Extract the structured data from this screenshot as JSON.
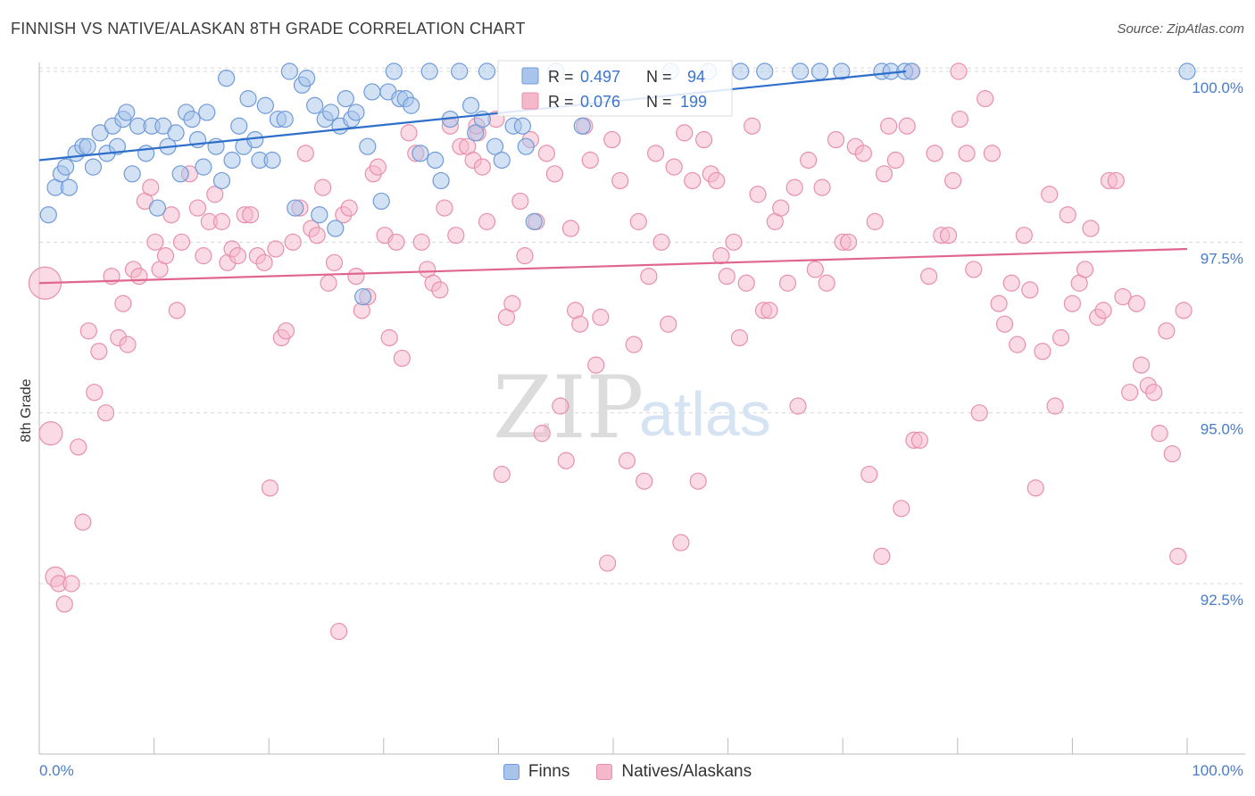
{
  "header": {
    "title": "FINNISH VS NATIVE/ALASKAN 8TH GRADE CORRELATION CHART",
    "source": "Source: ZipAtlas.com"
  },
  "watermark": {
    "part1": "ZIP",
    "part2": "atlas"
  },
  "legend_top": {
    "finns": {
      "r_label": "R =",
      "r_value": "0.497",
      "n_label": "N =",
      "n_value": "94"
    },
    "natives": {
      "r_label": "R =",
      "r_value": "0.076",
      "n_label": "N =",
      "n_value": "199"
    }
  },
  "legend_bottom": {
    "finns": "Finns",
    "natives": "Natives/Alaskans"
  },
  "colors": {
    "finns_fill": "#a8c4ea",
    "finns_stroke": "#6f9bd8",
    "finns_line": "#2f6fcc",
    "natives_fill": "#f5b8cb",
    "natives_stroke": "#e890aa",
    "natives_line": "#e06690",
    "tick_label": "#4a7cc7",
    "grid": "#d8d8d8"
  },
  "chart_data": {
    "type": "scatter",
    "title": "FINNISH VS NATIVE/ALASKAN 8TH GRADE CORRELATION CHART",
    "xlabel": "",
    "ylabel": "8th Grade",
    "xlim": [
      0,
      100
    ],
    "ylim": [
      89.5,
      100.2
    ],
    "x_tick_labels": [
      "0.0%",
      "100.0%"
    ],
    "y_ticks": [
      {
        "value": 100.0,
        "label": "100.0%"
      },
      {
        "value": 97.5,
        "label": "97.5%"
      },
      {
        "value": 95.0,
        "label": "95.0%"
      },
      {
        "value": 92.5,
        "label": "92.5%"
      }
    ],
    "grid": true,
    "legend_position": "top-center",
    "series": [
      {
        "name": "Finns",
        "r": 0.497,
        "n": 94,
        "trend": {
          "x": [
            0,
            75.5
          ],
          "y": [
            98.7,
            100.0
          ]
        },
        "points": [
          [
            0.8,
            97.9
          ],
          [
            1.4,
            98.3
          ],
          [
            1.9,
            98.5
          ],
          [
            2.3,
            98.6
          ],
          [
            2.6,
            98.3
          ],
          [
            3.2,
            98.8
          ],
          [
            3.8,
            98.9
          ],
          [
            4.2,
            98.9
          ],
          [
            4.7,
            98.6
          ],
          [
            5.3,
            99.1
          ],
          [
            5.9,
            98.8
          ],
          [
            6.4,
            99.2
          ],
          [
            6.8,
            98.9
          ],
          [
            7.3,
            99.3
          ],
          [
            7.6,
            99.4
          ],
          [
            8.1,
            98.5
          ],
          [
            8.6,
            99.2
          ],
          [
            9.3,
            98.8
          ],
          [
            9.8,
            99.2
          ],
          [
            10.3,
            98.0
          ],
          [
            10.8,
            99.2
          ],
          [
            11.2,
            98.9
          ],
          [
            11.9,
            99.1
          ],
          [
            12.3,
            98.5
          ],
          [
            12.8,
            99.4
          ],
          [
            13.3,
            99.3
          ],
          [
            13.8,
            99.0
          ],
          [
            14.3,
            98.6
          ],
          [
            14.6,
            99.4
          ],
          [
            15.4,
            98.9
          ],
          [
            15.9,
            98.4
          ],
          [
            16.3,
            99.9
          ],
          [
            16.8,
            98.7
          ],
          [
            17.4,
            99.2
          ],
          [
            17.8,
            98.9
          ],
          [
            18.2,
            99.6
          ],
          [
            18.8,
            99.0
          ],
          [
            19.2,
            98.7
          ],
          [
            19.7,
            99.5
          ],
          [
            20.3,
            98.7
          ],
          [
            20.8,
            99.3
          ],
          [
            21.4,
            99.3
          ],
          [
            21.8,
            100.0
          ],
          [
            22.3,
            98.0
          ],
          [
            22.9,
            99.8
          ],
          [
            23.3,
            99.9
          ],
          [
            24.0,
            99.5
          ],
          [
            24.4,
            97.9
          ],
          [
            24.9,
            99.3
          ],
          [
            25.4,
            99.4
          ],
          [
            25.8,
            97.7
          ],
          [
            26.2,
            99.2
          ],
          [
            26.7,
            99.6
          ],
          [
            27.2,
            99.3
          ],
          [
            27.6,
            99.4
          ],
          [
            28.2,
            96.7
          ],
          [
            28.6,
            98.9
          ],
          [
            29.0,
            99.7
          ],
          [
            29.8,
            98.1
          ],
          [
            30.4,
            99.7
          ],
          [
            30.9,
            100.0
          ],
          [
            31.4,
            99.6
          ],
          [
            31.9,
            99.6
          ],
          [
            32.4,
            99.5
          ],
          [
            33.2,
            98.8
          ],
          [
            34.0,
            100.0
          ],
          [
            34.5,
            98.7
          ],
          [
            35.0,
            98.4
          ],
          [
            35.8,
            99.3
          ],
          [
            36.6,
            100.0
          ],
          [
            37.6,
            99.5
          ],
          [
            38.0,
            99.1
          ],
          [
            38.6,
            99.3
          ],
          [
            39.0,
            100.0
          ],
          [
            39.7,
            98.9
          ],
          [
            40.3,
            98.7
          ],
          [
            41.3,
            99.2
          ],
          [
            42.1,
            99.2
          ],
          [
            42.4,
            98.9
          ],
          [
            43.1,
            97.8
          ],
          [
            45.0,
            100.0
          ],
          [
            47.3,
            99.2
          ],
          [
            55.0,
            100.0
          ],
          [
            58.3,
            100.0
          ],
          [
            61.1,
            100.0
          ],
          [
            66.3,
            100.0
          ],
          [
            68.0,
            100.0
          ],
          [
            69.9,
            100.0
          ],
          [
            73.4,
            100.0
          ],
          [
            74.2,
            100.0
          ],
          [
            75.4,
            100.0
          ],
          [
            76.0,
            100.0
          ],
          [
            100.0,
            100.0
          ],
          [
            63.2,
            100.0
          ]
        ]
      },
      {
        "name": "Natives/Alaskans",
        "r": 0.076,
        "n": 199,
        "trend": {
          "x": [
            0,
            100
          ],
          "y": [
            96.9,
            97.4
          ]
        },
        "points": [
          [
            0.5,
            96.9
          ],
          [
            1.0,
            94.7
          ],
          [
            1.4,
            92.6
          ],
          [
            1.7,
            92.5
          ],
          [
            2.2,
            92.2
          ],
          [
            2.8,
            92.5
          ],
          [
            3.4,
            94.5
          ],
          [
            3.8,
            93.4
          ],
          [
            4.3,
            96.2
          ],
          [
            4.8,
            95.3
          ],
          [
            5.2,
            95.9
          ],
          [
            5.8,
            95.0
          ],
          [
            6.3,
            97.0
          ],
          [
            6.9,
            96.1
          ],
          [
            7.3,
            96.6
          ],
          [
            7.7,
            96.0
          ],
          [
            8.2,
            97.1
          ],
          [
            8.7,
            97.0
          ],
          [
            9.2,
            98.1
          ],
          [
            9.7,
            98.3
          ],
          [
            10.1,
            97.5
          ],
          [
            10.5,
            97.1
          ],
          [
            11.0,
            97.3
          ],
          [
            11.5,
            97.9
          ],
          [
            12.0,
            96.5
          ],
          [
            12.4,
            97.5
          ],
          [
            13.1,
            98.5
          ],
          [
            13.8,
            98.0
          ],
          [
            14.3,
            97.3
          ],
          [
            14.8,
            97.8
          ],
          [
            15.3,
            98.2
          ],
          [
            15.9,
            97.8
          ],
          [
            16.4,
            97.2
          ],
          [
            16.8,
            97.4
          ],
          [
            17.3,
            97.3
          ],
          [
            17.9,
            97.9
          ],
          [
            18.4,
            97.9
          ],
          [
            19.0,
            97.3
          ],
          [
            19.6,
            97.2
          ],
          [
            20.1,
            93.9
          ],
          [
            20.6,
            97.4
          ],
          [
            21.1,
            96.1
          ],
          [
            21.5,
            96.2
          ],
          [
            22.1,
            97.5
          ],
          [
            22.7,
            98.0
          ],
          [
            23.2,
            98.8
          ],
          [
            23.7,
            97.7
          ],
          [
            24.2,
            97.6
          ],
          [
            24.7,
            98.3
          ],
          [
            25.2,
            96.9
          ],
          [
            25.7,
            97.2
          ],
          [
            26.1,
            91.8
          ],
          [
            26.5,
            97.9
          ],
          [
            27.0,
            98.0
          ],
          [
            27.6,
            97.0
          ],
          [
            28.1,
            96.5
          ],
          [
            28.6,
            96.7
          ],
          [
            29.1,
            98.5
          ],
          [
            29.5,
            98.6
          ],
          [
            30.1,
            97.6
          ],
          [
            30.5,
            96.1
          ],
          [
            31.1,
            97.5
          ],
          [
            31.6,
            95.8
          ],
          [
            32.2,
            99.1
          ],
          [
            32.8,
            98.8
          ],
          [
            33.3,
            97.5
          ],
          [
            33.8,
            97.1
          ],
          [
            34.3,
            96.9
          ],
          [
            34.9,
            96.8
          ],
          [
            35.3,
            98.0
          ],
          [
            35.8,
            99.2
          ],
          [
            36.3,
            97.6
          ],
          [
            36.7,
            98.9
          ],
          [
            37.3,
            98.9
          ],
          [
            37.8,
            98.7
          ],
          [
            38.2,
            99.1
          ],
          [
            38.6,
            98.6
          ],
          [
            39.0,
            97.8
          ],
          [
            39.8,
            99.3
          ],
          [
            40.3,
            94.1
          ],
          [
            40.7,
            96.4
          ],
          [
            41.2,
            96.6
          ],
          [
            41.9,
            98.1
          ],
          [
            42.3,
            97.3
          ],
          [
            42.8,
            99.0
          ],
          [
            43.3,
            97.8
          ],
          [
            43.8,
            94.7
          ],
          [
            44.2,
            98.8
          ],
          [
            44.9,
            98.5
          ],
          [
            45.4,
            95.1
          ],
          [
            45.9,
            94.3
          ],
          [
            46.3,
            97.7
          ],
          [
            46.7,
            96.5
          ],
          [
            47.1,
            96.3
          ],
          [
            47.5,
            99.2
          ],
          [
            48.0,
            98.7
          ],
          [
            48.5,
            95.7
          ],
          [
            48.9,
            96.4
          ],
          [
            49.5,
            92.8
          ],
          [
            49.9,
            99.0
          ],
          [
            50.6,
            98.4
          ],
          [
            51.2,
            94.3
          ],
          [
            51.8,
            96.0
          ],
          [
            52.2,
            97.8
          ],
          [
            52.7,
            94.0
          ],
          [
            53.1,
            97.0
          ],
          [
            53.7,
            98.8
          ],
          [
            54.2,
            97.5
          ],
          [
            54.8,
            96.3
          ],
          [
            55.3,
            98.6
          ],
          [
            55.9,
            93.1
          ],
          [
            56.2,
            99.1
          ],
          [
            56.9,
            98.4
          ],
          [
            57.4,
            94.0
          ],
          [
            57.9,
            99.0
          ],
          [
            58.5,
            98.5
          ],
          [
            59.0,
            98.4
          ],
          [
            59.4,
            97.3
          ],
          [
            59.9,
            97.0
          ],
          [
            60.5,
            97.5
          ],
          [
            61.0,
            96.1
          ],
          [
            61.6,
            96.9
          ],
          [
            62.1,
            99.2
          ],
          [
            62.6,
            98.2
          ],
          [
            63.1,
            96.5
          ],
          [
            63.6,
            96.5
          ],
          [
            64.1,
            97.8
          ],
          [
            64.6,
            98.0
          ],
          [
            65.2,
            96.9
          ],
          [
            65.8,
            98.3
          ],
          [
            66.1,
            95.1
          ],
          [
            67.0,
            98.7
          ],
          [
            67.6,
            97.1
          ],
          [
            68.2,
            98.3
          ],
          [
            68.6,
            96.9
          ],
          [
            69.4,
            99.0
          ],
          [
            70.0,
            97.5
          ],
          [
            70.5,
            97.5
          ],
          [
            71.1,
            98.9
          ],
          [
            71.8,
            98.8
          ],
          [
            72.3,
            94.1
          ],
          [
            72.8,
            97.8
          ],
          [
            73.4,
            92.9
          ],
          [
            74.0,
            99.2
          ],
          [
            74.6,
            98.7
          ],
          [
            75.1,
            93.6
          ],
          [
            75.6,
            99.2
          ],
          [
            76.2,
            94.6
          ],
          [
            76.7,
            94.6
          ],
          [
            77.5,
            97.0
          ],
          [
            78.0,
            98.8
          ],
          [
            78.6,
            97.6
          ],
          [
            79.2,
            97.6
          ],
          [
            79.6,
            98.4
          ],
          [
            80.2,
            99.3
          ],
          [
            80.8,
            98.8
          ],
          [
            81.4,
            97.1
          ],
          [
            81.9,
            95.0
          ],
          [
            82.4,
            99.6
          ],
          [
            83.0,
            98.8
          ],
          [
            83.6,
            96.6
          ],
          [
            84.1,
            96.3
          ],
          [
            84.7,
            96.9
          ],
          [
            85.2,
            96.0
          ],
          [
            85.8,
            97.6
          ],
          [
            86.3,
            96.8
          ],
          [
            86.8,
            93.9
          ],
          [
            87.4,
            95.9
          ],
          [
            88.0,
            98.2
          ],
          [
            88.5,
            95.1
          ],
          [
            89.0,
            96.1
          ],
          [
            89.6,
            97.9
          ],
          [
            90.0,
            96.6
          ],
          [
            90.6,
            96.9
          ],
          [
            91.1,
            97.1
          ],
          [
            91.6,
            97.7
          ],
          [
            92.2,
            96.4
          ],
          [
            92.7,
            96.5
          ],
          [
            93.2,
            98.4
          ],
          [
            93.8,
            98.4
          ],
          [
            94.4,
            96.7
          ],
          [
            95.0,
            95.3
          ],
          [
            95.6,
            96.6
          ],
          [
            96.0,
            95.7
          ],
          [
            96.6,
            95.4
          ],
          [
            97.1,
            95.3
          ],
          [
            97.6,
            94.7
          ],
          [
            98.2,
            96.2
          ],
          [
            98.7,
            94.4
          ],
          [
            99.2,
            92.9
          ],
          [
            99.7,
            96.5
          ],
          [
            38.1,
            99.2
          ],
          [
            73.6,
            98.5
          ],
          [
            80.1,
            100.0
          ],
          [
            76.0,
            100.0
          ]
        ]
      }
    ]
  }
}
